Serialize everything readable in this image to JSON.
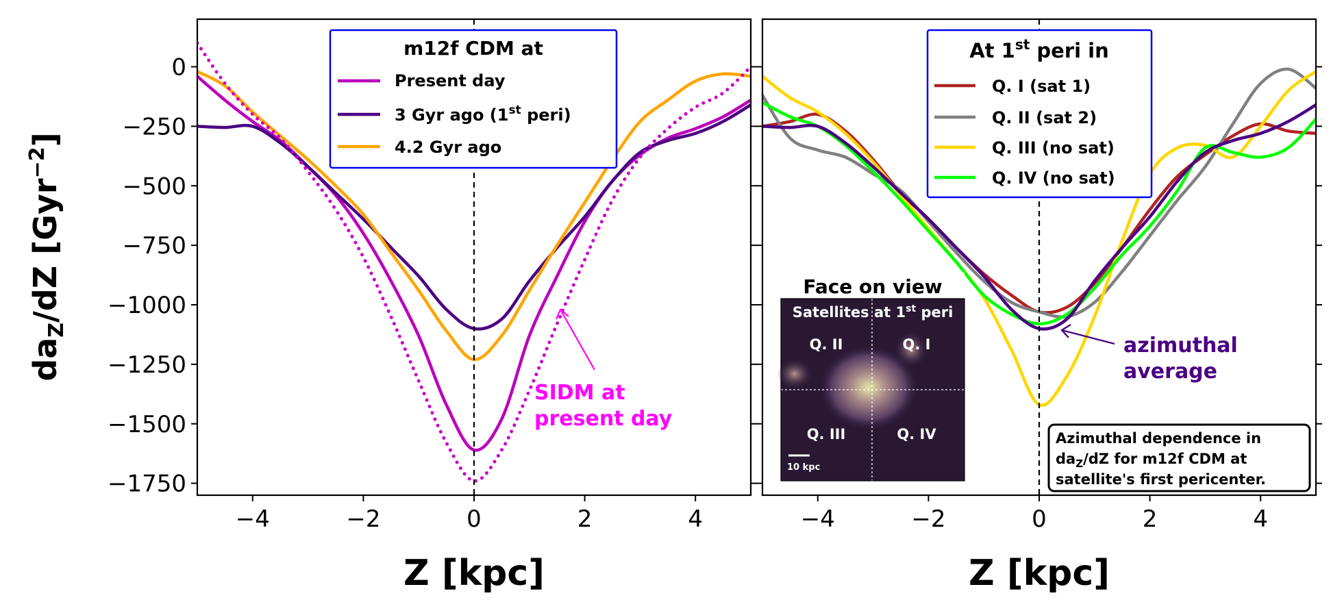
{
  "figure": {
    "ylabel_main": "da",
    "ylabel_sub": "Z",
    "ylabel_tail": "/dZ [Gyr",
    "ylabel_exp": "−2",
    "ylabel_close": "]"
  },
  "chart_data": [
    {
      "type": "line",
      "xlabel": "Z [kpc]",
      "xlim": [
        -5,
        5
      ],
      "ylim": [
        -1800,
        200
      ],
      "xticks": [
        -4,
        -2,
        0,
        2,
        4
      ],
      "yticks": [
        0,
        -250,
        -500,
        -750,
        -1000,
        -1250,
        -1500,
        -1750
      ],
      "x": [
        -5,
        -4.5,
        -4,
        -3.5,
        -3,
        -2.5,
        -2,
        -1.5,
        -1,
        -0.5,
        0,
        0.5,
        1,
        1.5,
        2,
        2.5,
        3,
        3.5,
        4,
        4.5,
        5
      ],
      "legend_title": "m12f CDM at",
      "series": [
        {
          "name": "Present day",
          "color": "#bb00bb",
          "style": "solid",
          "legend": true,
          "values": [
            -40,
            -140,
            -230,
            -310,
            -420,
            -540,
            -700,
            -900,
            -1130,
            -1420,
            -1610,
            -1480,
            -1130,
            -880,
            -650,
            -480,
            -370,
            -300,
            -260,
            -210,
            -140
          ]
        },
        {
          "name": "3 Gyr ago (1st peri)",
          "color": "#4b0082",
          "style": "solid",
          "legend": true,
          "values": [
            -250,
            -255,
            -250,
            -320,
            -420,
            -530,
            -640,
            -760,
            -880,
            -1020,
            -1100,
            -1060,
            -900,
            -760,
            -630,
            -480,
            -360,
            -310,
            -280,
            -230,
            -160
          ]
        },
        {
          "name": "4.2 Gyr ago",
          "color": "#ffa500",
          "style": "solid",
          "legend": true,
          "values": [
            -20,
            -80,
            -190,
            -290,
            -390,
            -500,
            -620,
            -780,
            -940,
            -1110,
            -1230,
            -1130,
            -940,
            -750,
            -570,
            -390,
            -230,
            -140,
            -60,
            -30,
            -40
          ]
        },
        {
          "name": "SIDM at present day",
          "color": "#cc00cc",
          "style": "dotted",
          "legend": false,
          "values": [
            100,
            -70,
            -200,
            -300,
            -440,
            -600,
            -800,
            -1050,
            -1320,
            -1580,
            -1740,
            -1610,
            -1360,
            -1080,
            -810,
            -560,
            -380,
            -260,
            -170,
            -110,
            0
          ]
        }
      ],
      "annotations": [
        {
          "text_line1": "SIDM at",
          "text_line2": "present day",
          "color": "#ff00ff"
        }
      ]
    },
    {
      "type": "line",
      "xlabel": "Z [kpc]",
      "xlim": [
        -5,
        5
      ],
      "ylim": [
        -1800,
        200
      ],
      "xticks": [
        -4,
        -2,
        0,
        2,
        4
      ],
      "yticks": [
        0,
        -250,
        -500,
        -750,
        -1000,
        -1250,
        -1500,
        -1750
      ],
      "x": [
        -5,
        -4.5,
        -4,
        -3.5,
        -3,
        -2.5,
        -2,
        -1.5,
        -1,
        -0.5,
        0,
        0.5,
        1,
        1.5,
        2,
        2.5,
        3,
        3.5,
        4,
        4.5,
        5
      ],
      "legend_title": "At 1st peri in",
      "series": [
        {
          "name": "Q. I (sat 1)",
          "color": "#b22222",
          "style": "solid",
          "legend": true,
          "values": [
            -250,
            -230,
            -200,
            -270,
            -390,
            -530,
            -640,
            -760,
            -870,
            -960,
            -1030,
            -1010,
            -910,
            -760,
            -600,
            -460,
            -370,
            -290,
            -240,
            -270,
            -280
          ]
        },
        {
          "name": "Q. II (sat 2)",
          "color": "#808080",
          "style": "solid",
          "legend": true,
          "values": [
            -120,
            -300,
            -350,
            -380,
            -450,
            -520,
            -650,
            -780,
            -900,
            -990,
            -1030,
            -1050,
            -990,
            -860,
            -710,
            -560,
            -420,
            -240,
            -70,
            -10,
            -90
          ]
        },
        {
          "name": "Q. III (no sat)",
          "color": "#ffd700",
          "style": "solid",
          "legend": true,
          "values": [
            -40,
            -130,
            -190,
            -280,
            -400,
            -540,
            -680,
            -820,
            -970,
            -1190,
            -1420,
            -1300,
            -1050,
            -730,
            -450,
            -340,
            -330,
            -380,
            -250,
            -100,
            -20
          ]
        },
        {
          "name": "Q. IV (no sat)",
          "color": "#00ff00",
          "style": "solid",
          "legend": true,
          "values": [
            -150,
            -210,
            -250,
            -330,
            -440,
            -560,
            -690,
            -820,
            -960,
            -1040,
            -1080,
            -1040,
            -930,
            -790,
            -670,
            -520,
            -340,
            -360,
            -380,
            -340,
            -220
          ]
        },
        {
          "name": "azimuthal average",
          "color": "#4b0082",
          "style": "solid",
          "legend": false,
          "values": [
            -250,
            -255,
            -250,
            -320,
            -420,
            -530,
            -640,
            -760,
            -880,
            -1020,
            -1100,
            -1060,
            -900,
            -760,
            -630,
            -480,
            -360,
            -310,
            -280,
            -230,
            -160
          ]
        }
      ],
      "annotations": [
        {
          "text_line1": "azimuthal",
          "text_line2": "average",
          "color": "#4b0082"
        }
      ],
      "inset": {
        "title": "Face on view",
        "subtitle": "Satellites at 1st peri",
        "quadrants": [
          "Q. II",
          "Q. I",
          "Q. III",
          "Q. IV"
        ],
        "scalebar": "10 kpc"
      },
      "textbox": {
        "line1": "Azimuthal dependence in",
        "line2": "da",
        "line2_sub": "Z",
        "line2_tail": "/dZ for m12f CDM at",
        "line3": "satellite's first pericenter."
      }
    }
  ]
}
